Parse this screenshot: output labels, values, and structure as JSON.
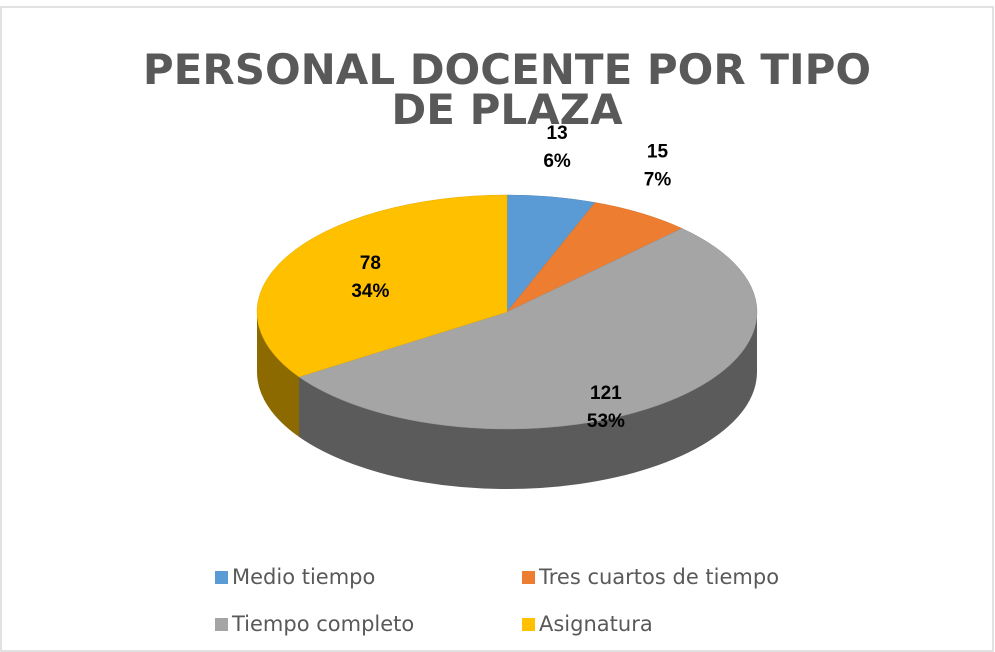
{
  "chart_data": {
    "type": "pie",
    "title": "PERSONAL DOCENTE POR TIPO DE PLAZA",
    "categories": [
      "Medio tiempo",
      "Tres cuartos de tiempo",
      "Tiempo completo",
      "Asignatura"
    ],
    "values": [
      13,
      15,
      121,
      78
    ],
    "percentage_labels": [
      "6%",
      "7%",
      "53%",
      "34%"
    ],
    "colors": [
      "#5b9bd5",
      "#ed7d31",
      "#a5a5a5",
      "#ffc000"
    ],
    "legend": "bottom"
  }
}
